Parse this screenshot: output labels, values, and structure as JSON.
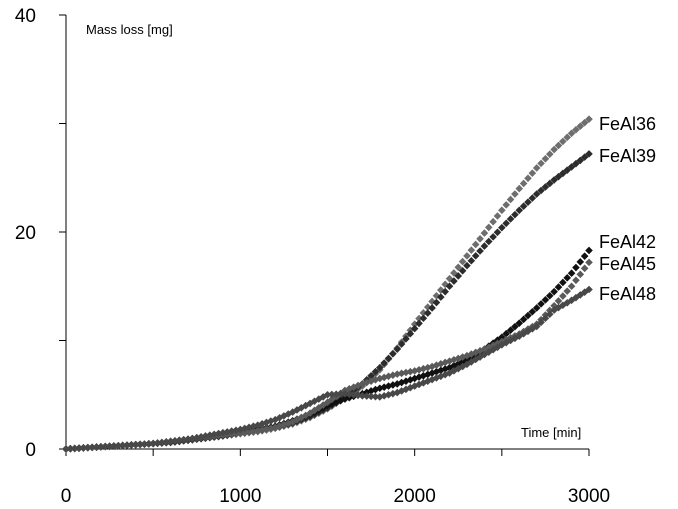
{
  "chart_data": {
    "type": "scatter",
    "xlabel": "Time [min]",
    "ylabel": "Mass loss [mg]",
    "xlim": [
      0,
      3000
    ],
    "ylim": [
      0,
      40
    ],
    "x_ticks": [
      0,
      1000,
      2000,
      3000
    ],
    "y_ticks": [
      0,
      20,
      40
    ],
    "x_ticks_labels": [
      "0",
      "1000",
      "2000",
      "3000"
    ],
    "y_ticks_labels": [
      "0",
      "20",
      "40"
    ],
    "grid": false,
    "legend": "inline labels at the right end of each series",
    "marker": "diamond",
    "x": [
      0,
      100,
      200,
      300,
      400,
      500,
      600,
      700,
      800,
      900,
      1000,
      1100,
      1200,
      1300,
      1400,
      1500,
      1600,
      1700,
      1800,
      1900,
      2000,
      2100,
      2200,
      2300,
      2400,
      2500,
      2600,
      2700,
      2800,
      2900,
      3000
    ],
    "series": [
      {
        "name": "FeAl36",
        "color": "#6e6e6e",
        "values": [
          0,
          0.1,
          0.2,
          0.3,
          0.4,
          0.5,
          0.6,
          0.8,
          1.0,
          1.2,
          1.4,
          1.6,
          1.9,
          2.3,
          2.9,
          3.7,
          4.7,
          5.8,
          7.3,
          9.3,
          11.5,
          13.6,
          15.7,
          17.8,
          19.9,
          22.0,
          24.0,
          25.9,
          27.6,
          29.1,
          30.4
        ]
      },
      {
        "name": "FeAl39",
        "color": "#2c2c2c",
        "values": [
          0,
          0.1,
          0.2,
          0.3,
          0.4,
          0.5,
          0.6,
          0.8,
          1.0,
          1.2,
          1.5,
          1.7,
          2.0,
          2.4,
          3.0,
          3.8,
          4.8,
          6.0,
          7.5,
          9.2,
          11.1,
          13.0,
          15.0,
          16.9,
          18.7,
          20.4,
          22.0,
          23.5,
          24.8,
          26.0,
          27.2
        ]
      },
      {
        "name": "FeAl42",
        "color": "#111111",
        "values": [
          0,
          0.1,
          0.2,
          0.3,
          0.4,
          0.5,
          0.7,
          0.9,
          1.1,
          1.4,
          1.6,
          1.8,
          2.1,
          2.6,
          3.2,
          4.0,
          4.6,
          5.1,
          5.6,
          6.0,
          6.5,
          7.0,
          7.5,
          8.2,
          9.2,
          10.3,
          11.6,
          13.0,
          14.5,
          16.2,
          18.3
        ]
      },
      {
        "name": "FeAl45",
        "color": "#5a5a5a",
        "values": [
          0,
          0.1,
          0.2,
          0.3,
          0.4,
          0.5,
          0.7,
          0.9,
          1.1,
          1.3,
          1.5,
          1.7,
          2.0,
          2.5,
          3.3,
          4.3,
          5.4,
          6.0,
          6.5,
          6.9,
          7.2,
          7.6,
          8.1,
          8.6,
          9.2,
          9.9,
          10.6,
          11.5,
          13.2,
          15.0,
          17.2
        ]
      },
      {
        "name": "FeAl48",
        "color": "#484848",
        "values": [
          0,
          0.1,
          0.2,
          0.3,
          0.4,
          0.5,
          0.7,
          0.9,
          1.2,
          1.5,
          1.8,
          2.2,
          2.7,
          3.4,
          4.2,
          5.0,
          5.1,
          4.9,
          4.8,
          5.2,
          5.8,
          6.4,
          7.0,
          7.8,
          8.7,
          9.6,
          10.4,
          11.3,
          12.8,
          13.7,
          14.7
        ]
      }
    ]
  }
}
